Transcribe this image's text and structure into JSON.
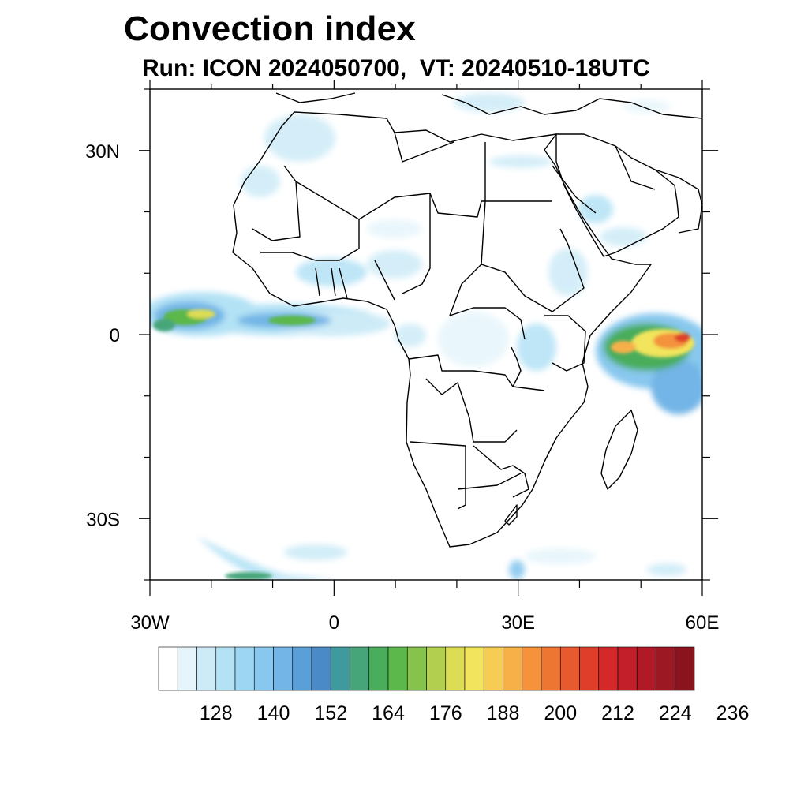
{
  "title": "Convection index",
  "subtitle": "Run: ICON 2024050700,  VT: 20240510-18UTC",
  "map": {
    "lon_range": [
      -30,
      60
    ],
    "lat_range": [
      -40,
      40
    ],
    "lon_tick_labels": [
      {
        "lon": -30,
        "text": "30W"
      },
      {
        "lon": 0,
        "text": "0"
      },
      {
        "lon": 30,
        "text": "30E"
      },
      {
        "lon": 60,
        "text": "60E"
      }
    ],
    "lat_tick_labels": [
      {
        "lat": 30,
        "text": "30N"
      },
      {
        "lat": 0,
        "text": "0"
      },
      {
        "lat": -30,
        "text": "30S"
      }
    ]
  },
  "colorbar": {
    "colors": [
      "#ffffff",
      "#e6f5fb",
      "#cdebf7",
      "#b3e2f5",
      "#9dd6f2",
      "#88c8ee",
      "#72b5e6",
      "#5b9fd8",
      "#4a8ac6",
      "#3f9a9e",
      "#47a57a",
      "#4aad5c",
      "#5cb84a",
      "#86c34d",
      "#b2cf50",
      "#dcdc55",
      "#f2e45c",
      "#f7cc55",
      "#f7b048",
      "#f4933c",
      "#ee7633",
      "#e75a2d",
      "#df3f2a",
      "#d4282a",
      "#c31f2a",
      "#b01a27",
      "#9c1823",
      "#8a141e"
    ],
    "labels": [
      "128",
      "140",
      "152",
      "164",
      "176",
      "188",
      "200",
      "212",
      "224",
      "236"
    ]
  }
}
